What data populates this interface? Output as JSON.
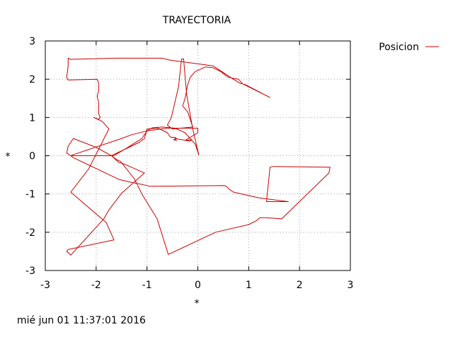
{
  "chart_data": {
    "type": "line",
    "title": "TRAYECTORIA",
    "xlabel": "*",
    "ylabel": "*",
    "xlim": [
      -3,
      3
    ],
    "ylim": [
      -3,
      3
    ],
    "xticks": [
      -3,
      -2,
      -1,
      0,
      1,
      2,
      3
    ],
    "yticks": [
      -3,
      -2,
      -1,
      0,
      1,
      2,
      3
    ],
    "grid": true,
    "legend_position": "top-right outside plot",
    "timestamp": "mié jun 01 11:37:01 2016",
    "series": [
      {
        "name": "Posicion",
        "color": "#cc0000",
        "points": [
          [
            1.42,
            1.52
          ],
          [
            1.38,
            1.55
          ],
          [
            0.88,
            1.88
          ],
          [
            0.8,
            2.0
          ],
          [
            0.6,
            2.05
          ],
          [
            0.45,
            2.2
          ],
          [
            0.3,
            2.3
          ],
          [
            0.15,
            2.32
          ],
          [
            -0.05,
            2.2
          ],
          [
            -0.15,
            2.05
          ],
          [
            -0.2,
            1.85
          ],
          [
            -0.25,
            1.5
          ],
          [
            -0.3,
            1.3
          ],
          [
            -0.2,
            1.15
          ],
          [
            -0.1,
            0.75
          ],
          [
            -0.5,
            0.7
          ],
          [
            -0.6,
            0.8
          ],
          [
            -0.52,
            1.0
          ],
          [
            -0.38,
            1.8
          ],
          [
            -0.32,
            2.53
          ],
          [
            -0.28,
            2.53
          ],
          [
            -0.22,
            1.6
          ],
          [
            -0.1,
            0.7
          ],
          [
            0.02,
            0.02
          ],
          [
            -0.05,
            0.3
          ],
          [
            -0.25,
            0.6
          ],
          [
            -0.45,
            0.72
          ],
          [
            -0.7,
            0.75
          ],
          [
            -0.9,
            0.73
          ],
          [
            -1.0,
            0.65
          ],
          [
            -1.1,
            0.45
          ],
          [
            -1.4,
            0.2
          ],
          [
            -1.65,
            0.0
          ],
          [
            -2.5,
            0.0
          ],
          [
            -2.58,
            0.07
          ],
          [
            -2.55,
            0.25
          ],
          [
            -2.45,
            0.45
          ],
          [
            -2.0,
            0.22
          ],
          [
            -1.7,
            0.0
          ],
          [
            -1.6,
            -0.1
          ],
          [
            -1.52,
            -0.15
          ],
          [
            -1.25,
            -0.6
          ],
          [
            -1.1,
            -1.0
          ],
          [
            -0.8,
            -1.65
          ],
          [
            -0.58,
            -2.58
          ],
          [
            0.35,
            -2.0
          ],
          [
            1.0,
            -1.8
          ],
          [
            1.15,
            -1.7
          ],
          [
            1.22,
            -1.62
          ],
          [
            1.35,
            -1.62
          ],
          [
            1.65,
            -1.65
          ],
          [
            2.58,
            -0.45
          ],
          [
            2.6,
            -0.3
          ],
          [
            1.48,
            -0.28
          ],
          [
            1.42,
            -0.3
          ],
          [
            1.35,
            -1.2
          ],
          [
            1.75,
            -1.2
          ],
          [
            1.78,
            -1.2
          ],
          [
            1.2,
            -1.1
          ],
          [
            0.7,
            -0.95
          ],
          [
            0.62,
            -0.88
          ],
          [
            0.58,
            -0.82
          ],
          [
            0.52,
            -0.78
          ],
          [
            -0.95,
            -0.8
          ],
          [
            -1.0,
            -0.78
          ],
          [
            -1.1,
            -0.75
          ],
          [
            -1.3,
            -0.7
          ],
          [
            -1.55,
            -0.62
          ],
          [
            -2.45,
            -0.05
          ],
          [
            -2.5,
            0.0
          ],
          [
            -2.4,
            0.05
          ],
          [
            -1.5,
            0.45
          ],
          [
            -1.3,
            0.55
          ],
          [
            -1.0,
            0.65
          ],
          [
            -0.6,
            0.72
          ],
          [
            0.0,
            0.72
          ],
          [
            0.0,
            0.6
          ],
          [
            -0.25,
            0.4
          ],
          [
            -0.12,
            0.42
          ],
          [
            -0.15,
            0.38
          ],
          [
            -0.45,
            0.45
          ],
          [
            -0.42,
            0.4
          ],
          [
            -0.48,
            0.42
          ],
          [
            -0.42,
            0.45
          ],
          [
            -0.45,
            0.48
          ],
          [
            -0.52,
            0.48
          ],
          [
            -0.55,
            0.5
          ],
          [
            -0.6,
            0.6
          ],
          [
            -0.78,
            0.72
          ],
          [
            -1.0,
            0.7
          ],
          [
            -1.05,
            0.45
          ],
          [
            -1.15,
            0.35
          ],
          [
            -1.7,
            0.0
          ],
          [
            -1.55,
            -0.18
          ],
          [
            -1.48,
            -0.2
          ],
          [
            -1.05,
            -0.45
          ],
          [
            -1.5,
            -0.98
          ],
          [
            -1.75,
            -1.42
          ],
          [
            -1.85,
            -1.65
          ],
          [
            -2.5,
            -2.6
          ],
          [
            -2.58,
            -2.5
          ],
          [
            -2.55,
            -2.45
          ],
          [
            -1.65,
            -2.2
          ],
          [
            -1.8,
            -1.75
          ],
          [
            -2.5,
            -0.95
          ],
          [
            -2.15,
            -0.35
          ],
          [
            -1.75,
            0.7
          ],
          [
            -1.88,
            0.9
          ],
          [
            -2.05,
            1.0
          ],
          [
            -1.95,
            0.95
          ],
          [
            -1.92,
            1.0
          ],
          [
            -1.95,
            1.1
          ],
          [
            -1.95,
            1.3
          ],
          [
            -1.95,
            1.4
          ],
          [
            -1.98,
            1.55
          ],
          [
            -1.95,
            1.7
          ],
          [
            -1.95,
            1.9
          ],
          [
            -1.98,
            2.0
          ],
          [
            -2.55,
            1.98
          ],
          [
            -2.58,
            2.05
          ],
          [
            -2.55,
            2.35
          ],
          [
            -2.55,
            2.55
          ],
          [
            -2.5,
            2.52
          ],
          [
            -1.6,
            2.55
          ],
          [
            -0.7,
            2.55
          ],
          [
            -0.55,
            2.5
          ],
          [
            0.3,
            2.35
          ],
          [
            0.7,
            2.0
          ],
          [
            0.82,
            1.9
          ],
          [
            0.95,
            1.85
          ],
          [
            1.42,
            1.52
          ]
        ]
      }
    ]
  }
}
